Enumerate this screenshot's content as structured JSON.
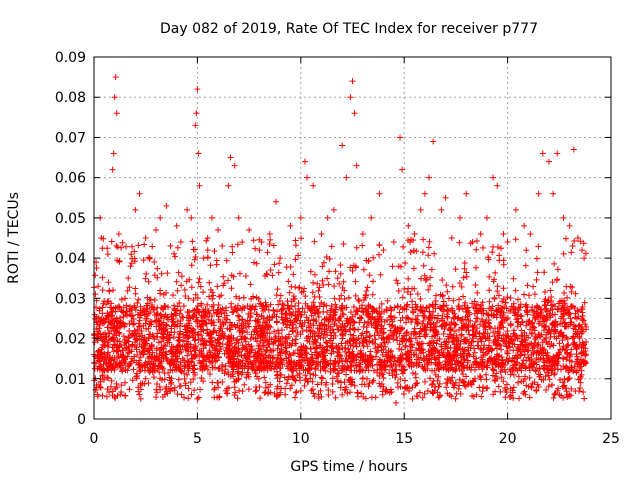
{
  "chart_data": {
    "type": "scatter",
    "title": "Day 082 of 2019, Rate Of TEC Index for receiver p777",
    "xlabel": "GPS time / hours",
    "ylabel": "ROTI / TECUs",
    "xlim": [
      0,
      25
    ],
    "ylim": [
      0,
      0.09
    ],
    "xticks": [
      "0",
      "5",
      "10",
      "15",
      "20",
      "25"
    ],
    "yticks": [
      "0",
      "0.01",
      "0.02",
      "0.03",
      "0.04",
      "0.05",
      "0.06",
      "0.07",
      "0.08",
      "0.09"
    ],
    "grid": true,
    "marker": "+",
    "color": "#ff0000",
    "series": [
      {
        "name": "ROTI",
        "points": [
          [
            0.0,
            0.016
          ],
          [
            0.1,
            0.039
          ],
          [
            0.2,
            0.033
          ],
          [
            0.3,
            0.05
          ],
          [
            0.35,
            0.045
          ],
          [
            0.5,
            0.024
          ],
          [
            0.7,
            0.034
          ],
          [
            0.9,
            0.062
          ],
          [
            0.95,
            0.066
          ],
          [
            1.0,
            0.08
          ],
          [
            1.05,
            0.085
          ],
          [
            1.1,
            0.076
          ],
          [
            1.2,
            0.046
          ],
          [
            1.5,
            0.03
          ],
          [
            1.8,
            0.041
          ],
          [
            2.0,
            0.052
          ],
          [
            2.2,
            0.056
          ],
          [
            2.5,
            0.045
          ],
          [
            2.7,
            0.04
          ],
          [
            3.0,
            0.047
          ],
          [
            3.2,
            0.05
          ],
          [
            3.5,
            0.053
          ],
          [
            3.7,
            0.043
          ],
          [
            4.0,
            0.048
          ],
          [
            4.2,
            0.044
          ],
          [
            4.5,
            0.052
          ],
          [
            4.7,
            0.05
          ],
          [
            4.9,
            0.073
          ],
          [
            4.95,
            0.076
          ],
          [
            5.0,
            0.082
          ],
          [
            5.05,
            0.066
          ],
          [
            5.1,
            0.058
          ],
          [
            5.3,
            0.04
          ],
          [
            5.5,
            0.042
          ],
          [
            5.7,
            0.05
          ],
          [
            6.0,
            0.047
          ],
          [
            6.2,
            0.043
          ],
          [
            6.5,
            0.058
          ],
          [
            6.6,
            0.065
          ],
          [
            6.8,
            0.063
          ],
          [
            7.0,
            0.05
          ],
          [
            7.5,
            0.047
          ],
          [
            8.0,
            0.042
          ],
          [
            8.5,
            0.046
          ],
          [
            8.8,
            0.054
          ],
          [
            9.0,
            0.04
          ],
          [
            9.5,
            0.048
          ],
          [
            10.0,
            0.05
          ],
          [
            10.2,
            0.064
          ],
          [
            10.3,
            0.06
          ],
          [
            10.6,
            0.058
          ],
          [
            11.0,
            0.046
          ],
          [
            11.3,
            0.05
          ],
          [
            11.6,
            0.052
          ],
          [
            12.0,
            0.068
          ],
          [
            12.2,
            0.06
          ],
          [
            12.4,
            0.08
          ],
          [
            12.5,
            0.084
          ],
          [
            12.6,
            0.076
          ],
          [
            12.7,
            0.063
          ],
          [
            13.0,
            0.046
          ],
          [
            13.4,
            0.05
          ],
          [
            13.8,
            0.056
          ],
          [
            14.0,
            0.042
          ],
          [
            14.5,
            0.044
          ],
          [
            14.8,
            0.07
          ],
          [
            14.9,
            0.062
          ],
          [
            15.2,
            0.048
          ],
          [
            15.5,
            0.046
          ],
          [
            15.8,
            0.052
          ],
          [
            16.0,
            0.056
          ],
          [
            16.2,
            0.06
          ],
          [
            16.4,
            0.069
          ],
          [
            16.8,
            0.052
          ],
          [
            17.0,
            0.055
          ],
          [
            17.3,
            0.045
          ],
          [
            17.7,
            0.05
          ],
          [
            18.0,
            0.056
          ],
          [
            18.3,
            0.044
          ],
          [
            18.7,
            0.046
          ],
          [
            19.0,
            0.05
          ],
          [
            19.3,
            0.06
          ],
          [
            19.5,
            0.058
          ],
          [
            19.8,
            0.046
          ],
          [
            20.0,
            0.044
          ],
          [
            20.4,
            0.052
          ],
          [
            20.8,
            0.048
          ],
          [
            21.1,
            0.046
          ],
          [
            21.5,
            0.056
          ],
          [
            21.7,
            0.066
          ],
          [
            22.0,
            0.064
          ],
          [
            22.2,
            0.056
          ],
          [
            22.4,
            0.066
          ],
          [
            22.7,
            0.05
          ],
          [
            23.0,
            0.048
          ],
          [
            23.2,
            0.067
          ],
          [
            23.4,
            0.045
          ],
          [
            23.6,
            0.042
          ],
          [
            23.7,
            0.04
          ],
          [
            0.5,
            0.012
          ],
          [
            1.5,
            0.009
          ],
          [
            2.5,
            0.01
          ],
          [
            3.5,
            0.008
          ],
          [
            4.5,
            0.011
          ],
          [
            5.0,
            0.005
          ],
          [
            6.0,
            0.009
          ],
          [
            7.0,
            0.01
          ],
          [
            8.0,
            0.008
          ],
          [
            9.0,
            0.011
          ],
          [
            10.0,
            0.007
          ],
          [
            11.0,
            0.009
          ],
          [
            12.0,
            0.006
          ],
          [
            13.0,
            0.01
          ],
          [
            14.0,
            0.008
          ],
          [
            14.6,
            0.004
          ],
          [
            15.4,
            0.005
          ],
          [
            16.5,
            0.008
          ],
          [
            17.5,
            0.009
          ],
          [
            18.5,
            0.006
          ],
          [
            19.5,
            0.01
          ],
          [
            20.5,
            0.009
          ],
          [
            21.5,
            0.008
          ],
          [
            22.5,
            0.006
          ],
          [
            23.5,
            0.01
          ]
        ]
      }
    ],
    "dense_band": {
      "description": "dense cloud of points covering the full time range",
      "x_range": [
        0,
        23.8
      ],
      "y_range": [
        0.005,
        0.045
      ],
      "typical_range": [
        0.012,
        0.028
      ]
    }
  }
}
